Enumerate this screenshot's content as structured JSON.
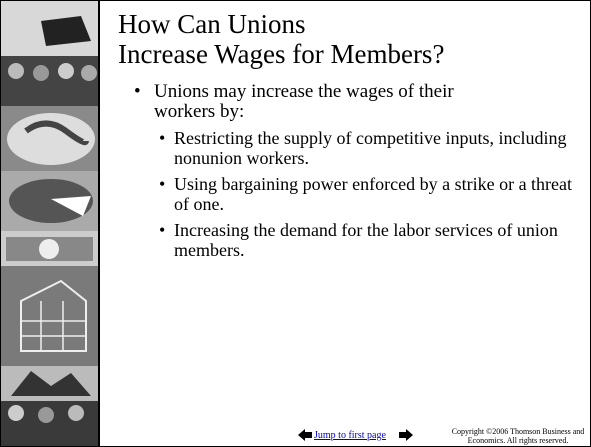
{
  "title": [
    "How Can Unions",
    "Increase Wages for Members?"
  ],
  "bullets": [
    {
      "text": "Unions may increase the wages of their workers by:",
      "sub": [
        "Restricting the supply of competitive inputs, including nonunion workers.",
        "Using bargaining power enforced by a strike or a threat of one.",
        "Increasing the demand for the labor services of union members."
      ]
    }
  ],
  "footer": {
    "link": "Jump to first page",
    "copyright": [
      "Copyright ©2006  Thomson Business and",
      "Economics. All rights reserved."
    ]
  }
}
